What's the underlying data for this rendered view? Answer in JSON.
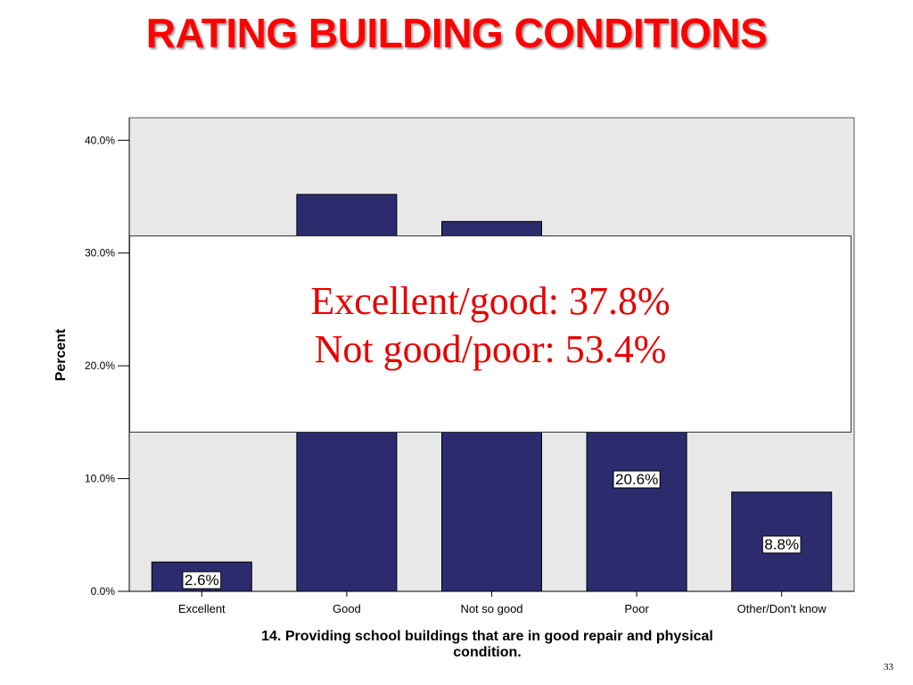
{
  "slide": {
    "title": "RATING BUILDING CONDITIONS",
    "page_number": "33"
  },
  "callout": {
    "line1": "Excellent/good:  37.8%",
    "line2": "Not good/poor:  53.4%",
    "text_color": "#e60000"
  },
  "colors": {
    "bar_fill": "#2b2b6e",
    "plot_background": "#e8e8e8",
    "title": "#ff0000"
  },
  "chart_data": {
    "type": "bar",
    "title": "",
    "xlabel": "14. Providing school buildings that are in good repair and physical condition.",
    "ylabel": "Percent",
    "categories": [
      "Excellent",
      "Good",
      "Not so good",
      "Poor",
      "Other/Don't know"
    ],
    "values": [
      2.6,
      35.2,
      32.8,
      20.6,
      8.8
    ],
    "data_labels": [
      "2.6%",
      "",
      "",
      "20.6%",
      "8.8%"
    ],
    "ylim": [
      0,
      42
    ],
    "yticks": [
      0,
      10,
      20,
      30,
      40
    ],
    "ytick_labels": [
      "0.0%",
      "10.0%",
      "20.0%",
      "30.0%",
      "40.0%"
    ],
    "grid": false,
    "legend": "none"
  }
}
